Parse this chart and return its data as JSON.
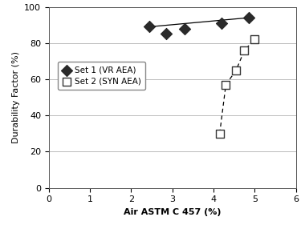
{
  "set1_x": [
    2.45,
    2.85,
    3.3,
    4.2,
    4.85
  ],
  "set1_y": [
    89,
    85,
    88,
    91,
    94
  ],
  "set2_x": [
    4.15,
    4.3,
    4.55,
    4.75,
    5.0
  ],
  "set2_y": [
    30,
    57,
    65,
    76,
    82
  ],
  "trendline1_x": [
    2.45,
    4.85
  ],
  "trendline1_y": [
    89,
    94
  ],
  "xlabel": "Air ASTM C 457 (%)",
  "ylabel": "Durability Factor (%)",
  "xlim": [
    0,
    6
  ],
  "ylim": [
    0,
    100
  ],
  "xticks": [
    0,
    1,
    2,
    3,
    4,
    5,
    6
  ],
  "yticks": [
    0,
    20,
    40,
    60,
    80,
    100
  ],
  "legend1": "Set 1 (VR AEA)",
  "legend2": "Set 2 (SYN AEA)",
  "grid_color": "#bbbbbb",
  "bg_color": "#ffffff",
  "line_color": "#000000",
  "label_fontsize": 8,
  "tick_fontsize": 8
}
